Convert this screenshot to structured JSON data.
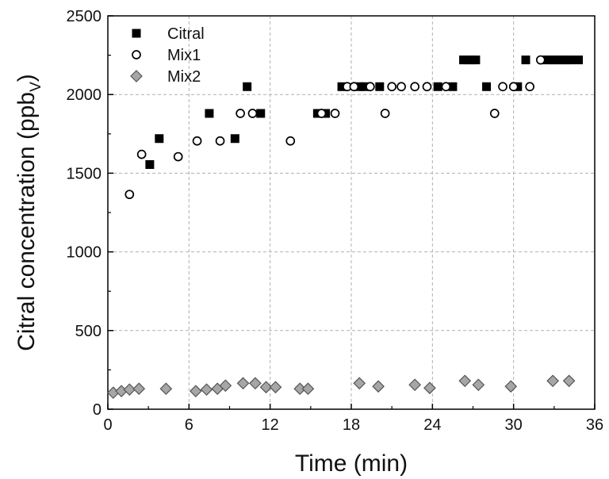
{
  "chart_data": {
    "type": "scatter",
    "xlabel": "Time (min)",
    "ylabel": "Citral concentration (ppb",
    "ylabel_subscript": "V",
    "ylabel_close": ")",
    "xlim": [
      0,
      36
    ],
    "ylim": [
      0,
      2500
    ],
    "xticks": [
      0,
      6,
      12,
      18,
      24,
      30,
      36
    ],
    "yticks": [
      0,
      500,
      1000,
      1500,
      2000,
      2500
    ],
    "grid": true,
    "legend_position": "top-left",
    "series": [
      {
        "name": "Citral",
        "marker": "filled-square",
        "color": "#000000",
        "points": [
          [
            3.1,
            1555
          ],
          [
            3.8,
            1720
          ],
          [
            7.5,
            1880
          ],
          [
            9.4,
            1720
          ],
          [
            10.3,
            2050
          ],
          [
            11.3,
            1880
          ],
          [
            15.5,
            1880
          ],
          [
            16.1,
            1880
          ],
          [
            17.3,
            2050
          ],
          [
            18.6,
            2050
          ],
          [
            19.0,
            2050
          ],
          [
            20.1,
            2050
          ],
          [
            24.4,
            2050
          ],
          [
            25.5,
            2050
          ],
          [
            26.3,
            2220
          ],
          [
            26.6,
            2220
          ],
          [
            26.9,
            2220
          ],
          [
            27.2,
            2220
          ],
          [
            28.0,
            2050
          ],
          [
            30.3,
            2050
          ],
          [
            30.9,
            2220
          ],
          [
            32.4,
            2220
          ],
          [
            32.7,
            2220
          ],
          [
            33.0,
            2220
          ],
          [
            33.3,
            2220
          ],
          [
            33.6,
            2220
          ],
          [
            33.9,
            2220
          ],
          [
            34.2,
            2220
          ],
          [
            34.8,
            2220
          ]
        ]
      },
      {
        "name": "Mix1",
        "marker": "open-circle",
        "color": "#000000",
        "points": [
          [
            1.6,
            1365
          ],
          [
            2.5,
            1620
          ],
          [
            5.2,
            1605
          ],
          [
            6.6,
            1705
          ],
          [
            8.3,
            1705
          ],
          [
            9.8,
            1880
          ],
          [
            10.7,
            1880
          ],
          [
            13.5,
            1705
          ],
          [
            15.8,
            1880
          ],
          [
            16.8,
            1880
          ],
          [
            17.7,
            2050
          ],
          [
            18.2,
            2050
          ],
          [
            19.4,
            2050
          ],
          [
            20.5,
            1880
          ],
          [
            21.0,
            2050
          ],
          [
            21.7,
            2050
          ],
          [
            22.7,
            2050
          ],
          [
            23.6,
            2050
          ],
          [
            25.0,
            2050
          ],
          [
            28.6,
            1880
          ],
          [
            29.2,
            2050
          ],
          [
            30.0,
            2050
          ],
          [
            31.2,
            2050
          ],
          [
            32.0,
            2220
          ]
        ]
      },
      {
        "name": "Mix2",
        "marker": "gray-diamond",
        "color": "#a6a6a6",
        "points": [
          [
            0.4,
            105
          ],
          [
            1.0,
            115
          ],
          [
            1.6,
            125
          ],
          [
            2.3,
            130
          ],
          [
            4.3,
            130
          ],
          [
            6.5,
            115
          ],
          [
            7.3,
            125
          ],
          [
            8.1,
            130
          ],
          [
            8.7,
            150
          ],
          [
            10.0,
            165
          ],
          [
            10.9,
            165
          ],
          [
            11.7,
            140
          ],
          [
            12.4,
            140
          ],
          [
            14.2,
            130
          ],
          [
            14.8,
            130
          ],
          [
            18.6,
            165
          ],
          [
            20.0,
            145
          ],
          [
            22.7,
            155
          ],
          [
            23.8,
            135
          ],
          [
            26.4,
            180
          ],
          [
            27.4,
            155
          ],
          [
            29.8,
            145
          ],
          [
            32.9,
            180
          ],
          [
            34.1,
            180
          ]
        ]
      }
    ]
  }
}
